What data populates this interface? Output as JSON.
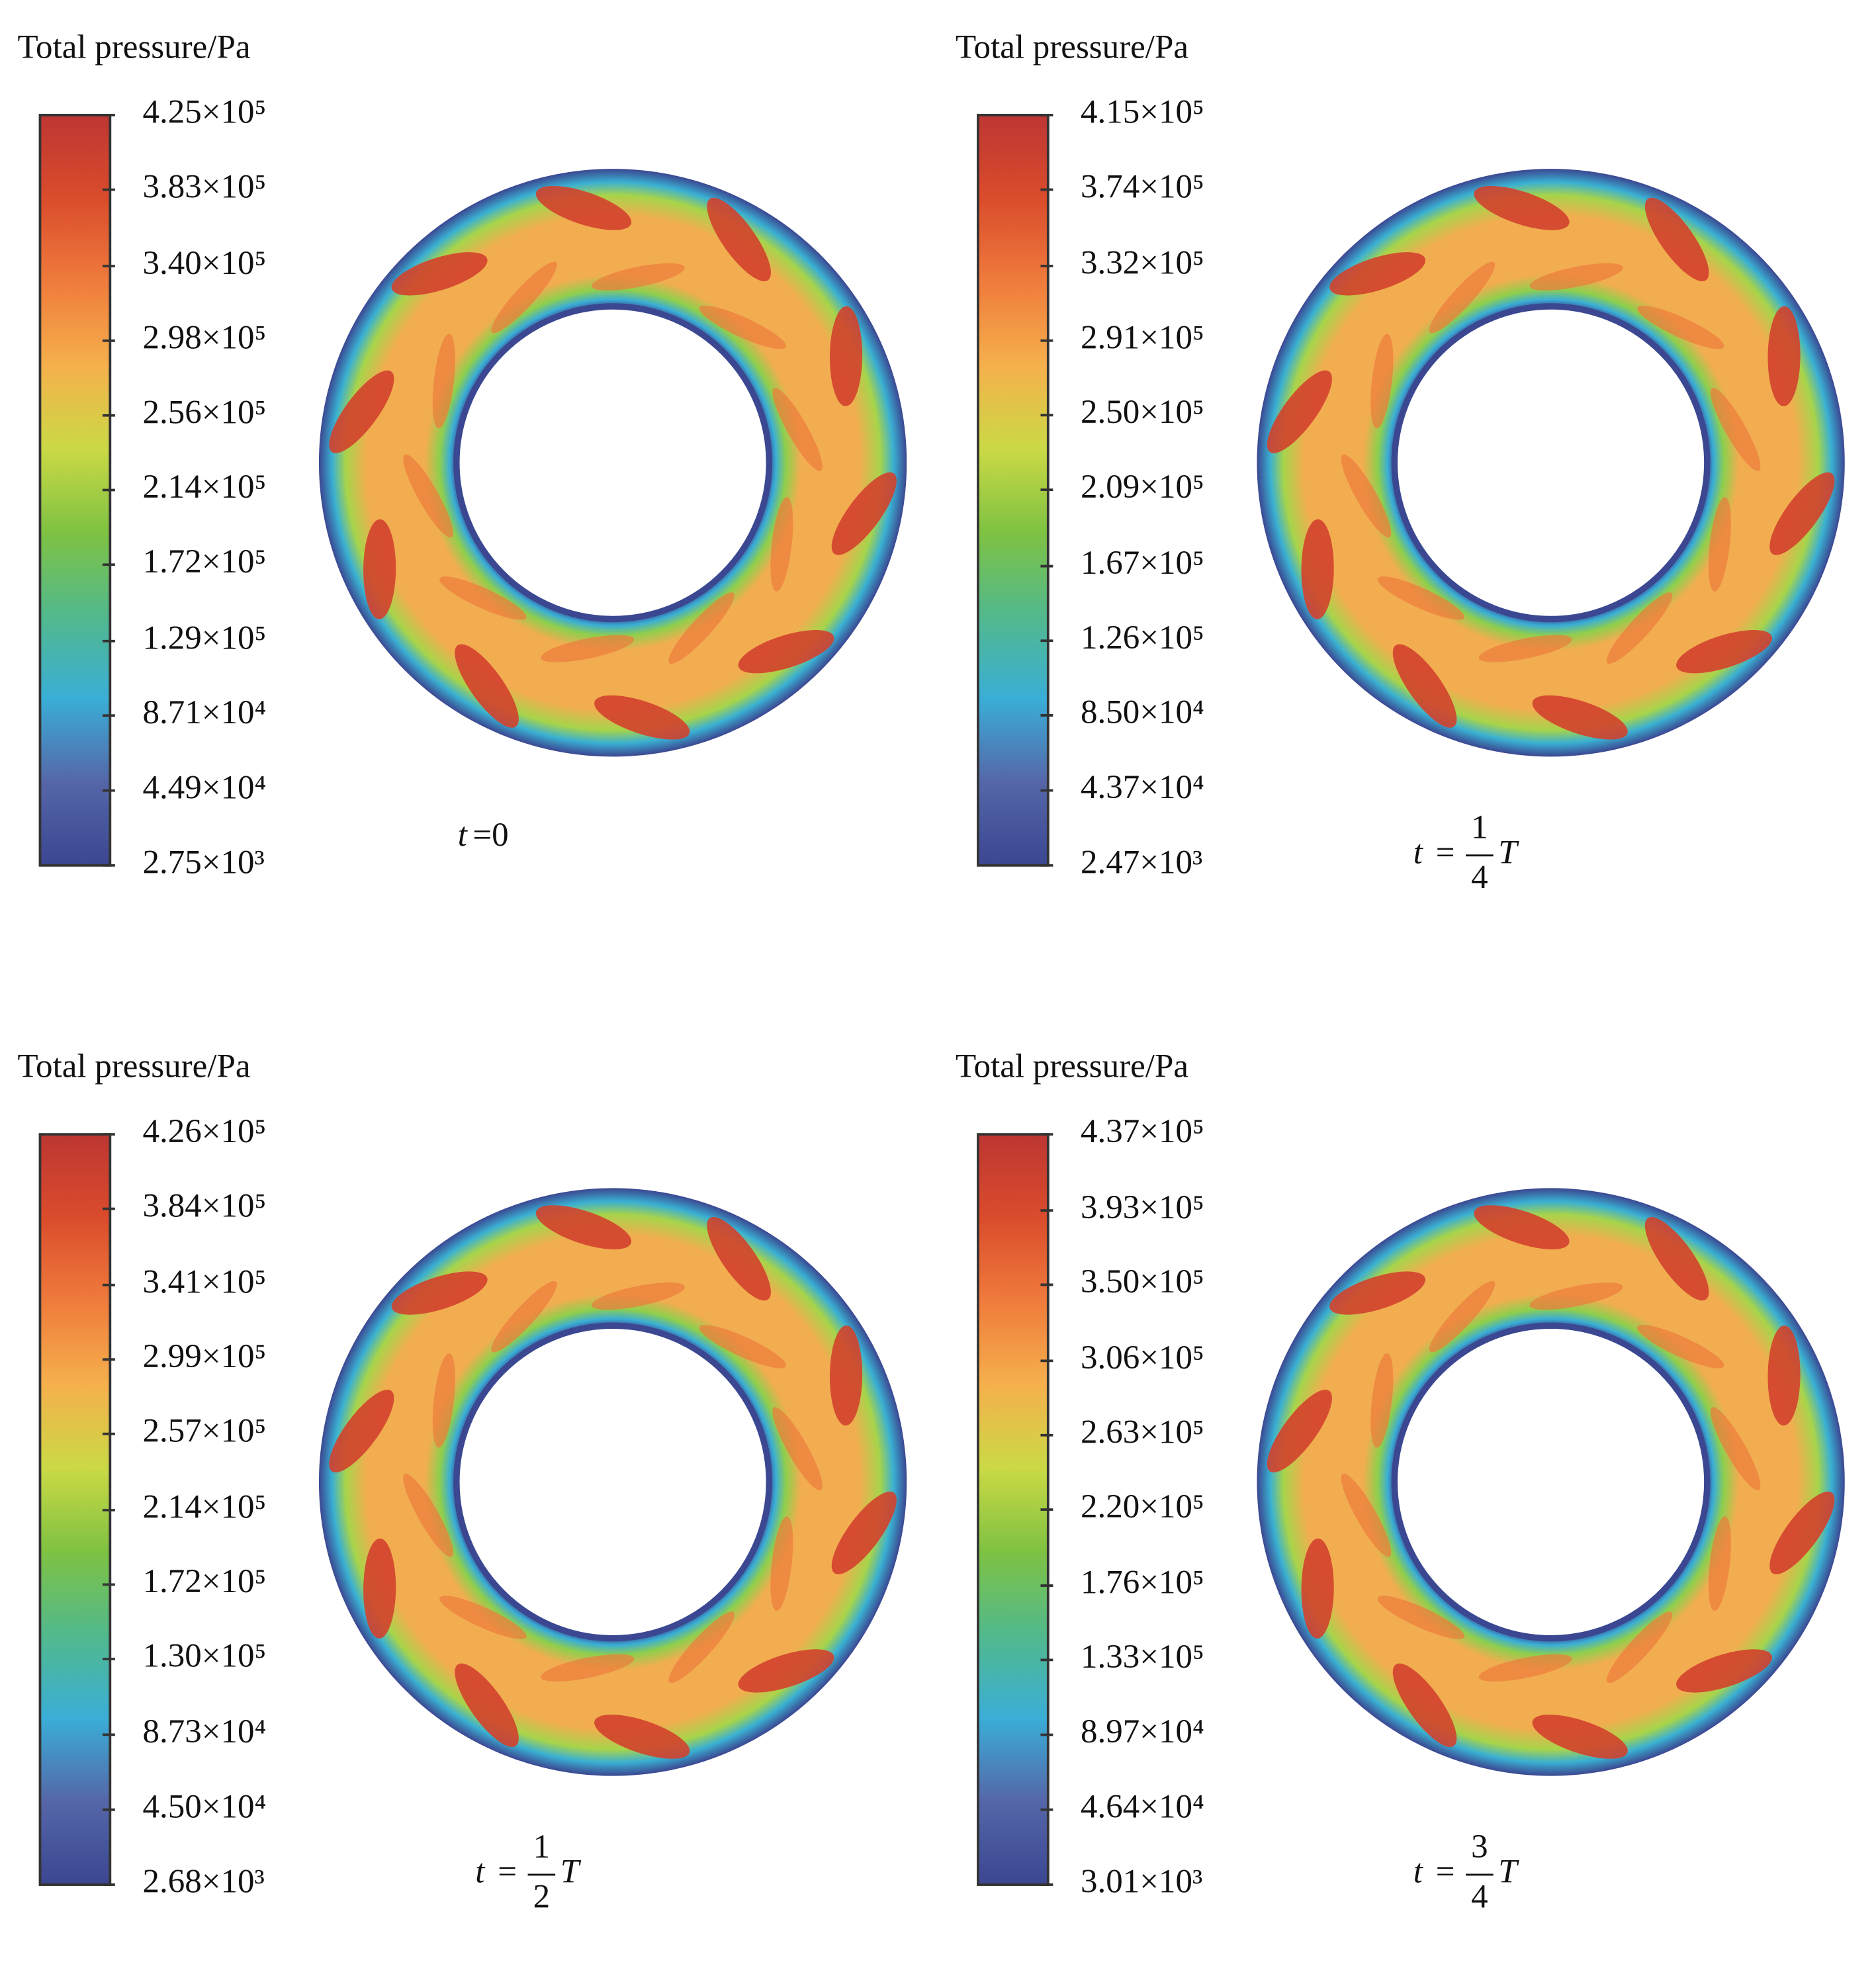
{
  "chart_data": [
    {
      "type": "contour",
      "title": "Total pressure/Pa",
      "caption": [
        "t",
        "=0"
      ],
      "clim": [
        2750,
        425000
      ],
      "colormap": [
        "#3b4791",
        "#5566a8",
        "#3aaed6",
        "#52b98c",
        "#7fc242",
        "#cbd945",
        "#f5b04c",
        "#ef7b3c",
        "#da4c2c",
        "#bd3632"
      ],
      "ticks": [
        {
          "value": 425000,
          "label": "4.25×10⁵"
        },
        {
          "value": 383000,
          "label": "3.83×10⁵"
        },
        {
          "value": 340000,
          "label": "3.40×10⁵"
        },
        {
          "value": 298000,
          "label": "2.98×10⁵"
        },
        {
          "value": 256000,
          "label": "2.56×10⁵"
        },
        {
          "value": 214000,
          "label": "2.14×10⁵"
        },
        {
          "value": 172000,
          "label": "1.72×10⁵"
        },
        {
          "value": 129000,
          "label": "1.29×10⁵"
        },
        {
          "value": 87100,
          "label": "8.71×10⁴"
        },
        {
          "value": 44900,
          "label": "4.49×10⁴"
        },
        {
          "value": 2750,
          "label": "2.75×10³"
        }
      ]
    },
    {
      "type": "contour",
      "title": "Total pressure/Pa",
      "caption": [
        "t",
        "=",
        "1",
        "4",
        "T"
      ],
      "clim": [
        2470,
        415000
      ],
      "colormap": [
        "#3b4791",
        "#5566a8",
        "#3aaed6",
        "#52b98c",
        "#7fc242",
        "#cbd945",
        "#f5b04c",
        "#ef7b3c",
        "#da4c2c",
        "#bd3632"
      ],
      "ticks": [
        {
          "value": 415000,
          "label": "4.15×10⁵"
        },
        {
          "value": 374000,
          "label": "3.74×10⁵"
        },
        {
          "value": 332000,
          "label": "3.32×10⁵"
        },
        {
          "value": 291000,
          "label": "2.91×10⁵"
        },
        {
          "value": 250000,
          "label": "2.50×10⁵"
        },
        {
          "value": 209000,
          "label": "2.09×10⁵"
        },
        {
          "value": 167000,
          "label": "1.67×10⁵"
        },
        {
          "value": 126000,
          "label": "1.26×10⁵"
        },
        {
          "value": 85000,
          "label": "8.50×10⁴"
        },
        {
          "value": 43700,
          "label": "4.37×10⁴"
        },
        {
          "value": 2470,
          "label": "2.47×10³"
        }
      ]
    },
    {
      "type": "contour",
      "title": "Total pressure/Pa",
      "caption": [
        "t",
        "=",
        "1",
        "2",
        "T"
      ],
      "clim": [
        2680,
        426000
      ],
      "colormap": [
        "#3b4791",
        "#5566a8",
        "#3aaed6",
        "#52b98c",
        "#7fc242",
        "#cbd945",
        "#f5b04c",
        "#ef7b3c",
        "#da4c2c",
        "#bd3632"
      ],
      "ticks": [
        {
          "value": 426000,
          "label": "4.26×10⁵"
        },
        {
          "value": 384000,
          "label": "3.84×10⁵"
        },
        {
          "value": 341000,
          "label": "3.41×10⁵"
        },
        {
          "value": 299000,
          "label": "2.99×10⁵"
        },
        {
          "value": 257000,
          "label": "2.57×10⁵"
        },
        {
          "value": 214000,
          "label": "2.14×10⁵"
        },
        {
          "value": 172000,
          "label": "1.72×10⁵"
        },
        {
          "value": 130000,
          "label": "1.30×10⁵"
        },
        {
          "value": 87300,
          "label": "8.73×10⁴"
        },
        {
          "value": 45000,
          "label": "4.50×10⁴"
        },
        {
          "value": 2680,
          "label": "2.68×10³"
        }
      ]
    },
    {
      "type": "contour",
      "title": "Total pressure/Pa",
      "caption": [
        "t",
        "=",
        "3",
        "4",
        "T"
      ],
      "clim": [
        3010,
        437000
      ],
      "colormap": [
        "#3b4791",
        "#5566a8",
        "#3aaed6",
        "#52b98c",
        "#7fc242",
        "#cbd945",
        "#f5b04c",
        "#ef7b3c",
        "#da4c2c",
        "#bd3632"
      ],
      "ticks": [
        {
          "value": 437000,
          "label": "4.37×10⁵"
        },
        {
          "value": 393000,
          "label": "3.93×10⁵"
        },
        {
          "value": 350000,
          "label": "3.50×10⁵"
        },
        {
          "value": 306000,
          "label": "3.06×10⁵"
        },
        {
          "value": 263000,
          "label": "2.63×10⁵"
        },
        {
          "value": 220000,
          "label": "2.20×10⁵"
        },
        {
          "value": 176000,
          "label": "1.76×10⁵"
        },
        {
          "value": 133000,
          "label": "1.33×10⁵"
        },
        {
          "value": 89700,
          "label": "8.97×10⁴"
        },
        {
          "value": 46400,
          "label": "4.64×10⁴"
        },
        {
          "value": 3010,
          "label": "3.01×10³"
        }
      ]
    }
  ]
}
